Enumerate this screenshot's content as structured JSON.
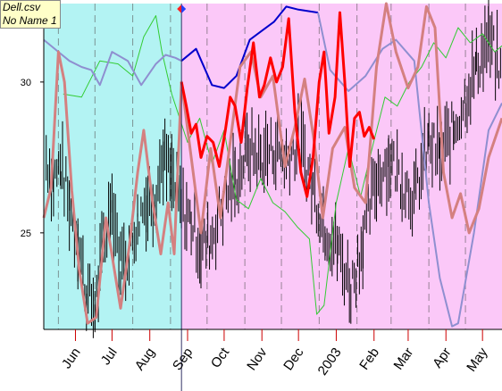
{
  "window": {
    "file_label": "Dell.csv",
    "chart_label": "No Name 1"
  },
  "colors": {
    "region_history": "#b3f3f3",
    "region_forecast": "#fbc8f8",
    "price_bars": "#000000",
    "avg_line_history": "#8f8fd0",
    "avg_line_forecast": "#0000cc",
    "oscillator": "#d48080",
    "forecast_price": "#ff0000",
    "indicator": "#33cc33"
  },
  "chart_data": {
    "type": "line",
    "title": "",
    "xlabel": "",
    "ylabel": "",
    "y_ticks": [
      25,
      30
    ],
    "ylim": [
      21.8,
      32.6
    ],
    "x_ticks": [
      "Jun",
      "Jul",
      "Aug",
      "Sep",
      "Oct",
      "Nov",
      "Dec",
      "2003",
      "Feb",
      "Mar",
      "Apr",
      "May"
    ],
    "x_range": [
      "2002-05-20",
      "2003-05-31"
    ],
    "divider_date": "2002-09-10",
    "grid": "vertical-dashed",
    "series": [
      {
        "type": "ohlc",
        "points": [
          [
            "2002-05-22",
            27.5
          ],
          [
            "2002-05-28",
            26.8
          ],
          [
            "2002-06-03",
            27.2
          ],
          [
            "2002-06-10",
            26.0
          ],
          [
            "2002-06-17",
            24.8
          ],
          [
            "2002-06-24",
            23.0
          ],
          [
            "2002-07-01",
            22.5
          ],
          [
            "2002-07-08",
            24.5
          ],
          [
            "2002-07-15",
            26.2
          ],
          [
            "2002-07-22",
            24.0
          ],
          [
            "2002-07-29",
            24.2
          ],
          [
            "2002-08-05",
            25.5
          ],
          [
            "2002-08-12",
            26.0
          ],
          [
            "2002-08-19",
            26.2
          ],
          [
            "2002-08-26",
            27.5
          ],
          [
            "2002-09-02",
            26.8
          ],
          [
            "2002-09-10",
            25.8
          ],
          [
            "2002-09-18",
            25.4
          ],
          [
            "2002-09-26",
            24.5
          ],
          [
            "2002-10-04",
            24.8
          ],
          [
            "2002-10-14",
            26.0
          ],
          [
            "2002-10-24",
            26.8
          ],
          [
            "2002-11-04",
            27.8
          ],
          [
            "2002-11-14",
            27.5
          ],
          [
            "2002-11-25",
            27.8
          ],
          [
            "2002-12-05",
            27.5
          ],
          [
            "2002-12-16",
            28.0
          ],
          [
            "2002-12-27",
            26.5
          ],
          [
            "2003-01-06",
            25.2
          ],
          [
            "2003-01-16",
            24.5
          ],
          [
            "2003-01-27",
            23.2
          ],
          [
            "2003-02-06",
            24.8
          ],
          [
            "2003-02-17",
            26.8
          ],
          [
            "2003-02-27",
            27.5
          ],
          [
            "2003-03-10",
            26.8
          ],
          [
            "2003-03-20",
            26.2
          ],
          [
            "2003-04-01",
            28.0
          ],
          [
            "2003-04-10",
            27.5
          ],
          [
            "2003-04-22",
            28.5
          ],
          [
            "2003-05-01",
            29.5
          ],
          [
            "2003-05-10",
            30.5
          ],
          [
            "2003-05-20",
            31.5
          ],
          [
            "2003-05-30",
            30.2
          ]
        ]
      },
      {
        "type": "line",
        "points": [
          [
            "2002-05-20",
            31.4
          ],
          [
            "2002-06-01",
            31.0
          ],
          [
            "2002-06-10",
            30.7
          ],
          [
            "2002-06-20",
            30.5
          ],
          [
            "2002-06-28",
            30.4
          ],
          [
            "2002-07-05",
            29.9
          ],
          [
            "2002-07-15",
            31.0
          ],
          [
            "2002-07-28",
            30.7
          ],
          [
            "2002-08-08",
            29.9
          ],
          [
            "2002-08-20",
            30.6
          ],
          [
            "2002-08-28",
            30.9
          ],
          [
            "2002-09-05",
            30.8
          ],
          [
            "2002-09-10",
            30.7
          ]
        ]
      },
      {
        "type": "line",
        "points": [
          [
            "2002-09-10",
            30.7
          ],
          [
            "2002-09-22",
            31.1
          ],
          [
            "2002-10-05",
            29.9
          ],
          [
            "2002-10-15",
            29.8
          ],
          [
            "2002-10-25",
            30.2
          ],
          [
            "2002-11-05",
            31.4
          ],
          [
            "2002-11-15",
            31.7
          ],
          [
            "2002-11-25",
            32.0
          ],
          [
            "2002-12-05",
            32.5
          ],
          [
            "2002-12-15",
            32.4
          ],
          [
            "2002-12-31",
            32.3
          ]
        ]
      },
      {
        "type": "line",
        "points": [
          [
            "2002-12-31",
            32.3
          ],
          [
            "2003-01-10",
            30.4
          ],
          [
            "2003-01-25",
            29.7
          ],
          [
            "2003-02-08",
            30.2
          ],
          [
            "2003-02-22",
            31.1
          ],
          [
            "2003-03-05",
            31.4
          ],
          [
            "2003-03-20",
            30.7
          ],
          [
            "2003-04-01",
            26.0
          ],
          [
            "2003-04-10",
            23.5
          ],
          [
            "2003-04-20",
            21.9
          ],
          [
            "2003-04-25",
            22.0
          ],
          [
            "2003-05-08",
            25.0
          ],
          [
            "2003-05-20",
            28.4
          ],
          [
            "2003-05-31",
            29.3
          ]
        ]
      },
      {
        "type": "line",
        "points": [
          [
            "2002-05-20",
            25.5
          ],
          [
            "2002-05-26",
            26.5
          ],
          [
            "2002-06-01",
            31.0
          ],
          [
            "2002-06-06",
            30.0
          ],
          [
            "2002-06-12",
            26.4
          ],
          [
            "2002-06-18",
            23.8
          ],
          [
            "2002-06-25",
            22.0
          ],
          [
            "2002-07-02",
            22.2
          ],
          [
            "2002-07-10",
            25.5
          ],
          [
            "2002-07-16",
            24.0
          ],
          [
            "2002-07-22",
            22.5
          ],
          [
            "2002-07-29",
            24.5
          ],
          [
            "2002-08-05",
            27.0
          ],
          [
            "2002-08-10",
            28.4
          ],
          [
            "2002-08-17",
            26.1
          ],
          [
            "2002-08-24",
            24.3
          ],
          [
            "2002-08-30",
            26.0
          ],
          [
            "2002-09-04",
            24.3
          ],
          [
            "2002-09-10",
            30.0
          ],
          [
            "2002-09-18",
            27.5
          ],
          [
            "2002-09-26",
            25.0
          ],
          [
            "2002-10-04",
            27.8
          ],
          [
            "2002-10-12",
            25.5
          ],
          [
            "2002-10-20",
            28.0
          ],
          [
            "2002-10-28",
            30.5
          ],
          [
            "2002-11-06",
            31.0
          ],
          [
            "2002-11-14",
            29.5
          ],
          [
            "2002-11-24",
            30.2
          ],
          [
            "2002-12-04",
            27.2
          ],
          [
            "2002-12-12",
            28.5
          ],
          [
            "2002-12-20",
            30.1
          ],
          [
            "2002-12-28",
            28.0
          ],
          [
            "2003-01-04",
            25.5
          ],
          [
            "2003-01-12",
            27.8
          ],
          [
            "2003-01-22",
            28.5
          ],
          [
            "2003-01-30",
            26.5
          ],
          [
            "2003-02-08",
            26.0
          ],
          [
            "2003-02-17",
            30.5
          ],
          [
            "2003-02-25",
            32.6
          ],
          [
            "2003-03-05",
            31.0
          ],
          [
            "2003-03-15",
            29.8
          ],
          [
            "2003-03-23",
            30.5
          ],
          [
            "2003-03-30",
            32.5
          ],
          [
            "2003-04-06",
            31.8
          ],
          [
            "2003-04-13",
            27.0
          ],
          [
            "2003-04-20",
            25.5
          ],
          [
            "2003-04-27",
            26.3
          ],
          [
            "2003-05-04",
            25.0
          ],
          [
            "2003-05-12",
            25.8
          ],
          [
            "2003-05-20",
            27.5
          ],
          [
            "2003-05-31",
            28.8
          ]
        ]
      },
      {
        "type": "line",
        "points": [
          [
            "2002-09-10",
            30.0
          ],
          [
            "2002-09-14",
            29.2
          ],
          [
            "2002-09-18",
            28.3
          ],
          [
            "2002-09-22",
            28.6
          ],
          [
            "2002-09-26",
            27.5
          ],
          [
            "2002-10-01",
            28.2
          ],
          [
            "2002-10-06",
            28.0
          ],
          [
            "2002-10-11",
            27.2
          ],
          [
            "2002-10-16",
            28.4
          ],
          [
            "2002-10-20",
            29.5
          ],
          [
            "2002-10-24",
            29.2
          ],
          [
            "2002-10-29",
            28.0
          ],
          [
            "2002-11-03",
            29.8
          ],
          [
            "2002-11-08",
            31.3
          ],
          [
            "2002-11-13",
            29.5
          ],
          [
            "2002-11-17",
            29.9
          ],
          [
            "2002-11-22",
            30.8
          ],
          [
            "2002-11-27",
            30.0
          ],
          [
            "2002-12-02",
            30.5
          ],
          [
            "2002-12-07",
            32.1
          ],
          [
            "2002-12-12",
            29.0
          ],
          [
            "2002-12-17",
            27.0
          ],
          [
            "2002-12-22",
            26.2
          ],
          [
            "2002-12-27",
            27.5
          ],
          [
            "2003-01-01",
            30.0
          ],
          [
            "2003-01-05",
            31.0
          ],
          [
            "2003-01-09",
            28.3
          ],
          [
            "2003-01-14",
            29.5
          ],
          [
            "2003-01-18",
            32.3
          ],
          [
            "2003-01-22",
            30.0
          ],
          [
            "2003-01-26",
            27.2
          ],
          [
            "2003-01-30",
            28.8
          ],
          [
            "2003-02-03",
            29.0
          ],
          [
            "2003-02-07",
            28.2
          ],
          [
            "2003-02-11",
            28.5
          ],
          [
            "2003-02-15",
            28.1
          ]
        ]
      },
      {
        "type": "line",
        "points": [
          [
            "2002-06-05",
            29.6
          ],
          [
            "2002-06-20",
            29.5
          ],
          [
            "2002-07-05",
            30.7
          ],
          [
            "2002-07-20",
            30.6
          ],
          [
            "2002-08-01",
            30.2
          ],
          [
            "2002-08-10",
            31.5
          ],
          [
            "2002-08-20",
            32.2
          ],
          [
            "2002-08-25",
            31.0
          ],
          [
            "2002-09-02",
            29.6
          ],
          [
            "2002-09-15",
            28.0
          ],
          [
            "2002-09-25",
            28.8
          ],
          [
            "2002-10-05",
            27.3
          ],
          [
            "2002-10-15",
            28.4
          ],
          [
            "2002-10-25",
            26.1
          ],
          [
            "2002-11-04",
            25.8
          ],
          [
            "2002-11-14",
            26.8
          ],
          [
            "2002-11-24",
            26.0
          ],
          [
            "2002-12-04",
            25.7
          ],
          [
            "2002-12-14",
            25.2
          ],
          [
            "2002-12-24",
            24.8
          ],
          [
            "2002-12-30",
            22.3
          ],
          [
            "2003-01-05",
            22.6
          ],
          [
            "2003-01-15",
            26.0
          ],
          [
            "2003-01-25",
            27.8
          ],
          [
            "2003-02-04",
            26.2
          ],
          [
            "2003-02-14",
            27.9
          ],
          [
            "2003-02-24",
            29.5
          ],
          [
            "2003-03-06",
            29.2
          ],
          [
            "2003-03-16",
            30.0
          ],
          [
            "2003-03-26",
            30.5
          ],
          [
            "2003-04-05",
            31.3
          ],
          [
            "2003-04-15",
            30.8
          ],
          [
            "2003-04-25",
            31.8
          ],
          [
            "2003-05-05",
            31.3
          ],
          [
            "2003-05-15",
            31.6
          ],
          [
            "2003-05-25",
            31.0
          ],
          [
            "2003-05-31",
            31.2
          ]
        ]
      }
    ]
  }
}
